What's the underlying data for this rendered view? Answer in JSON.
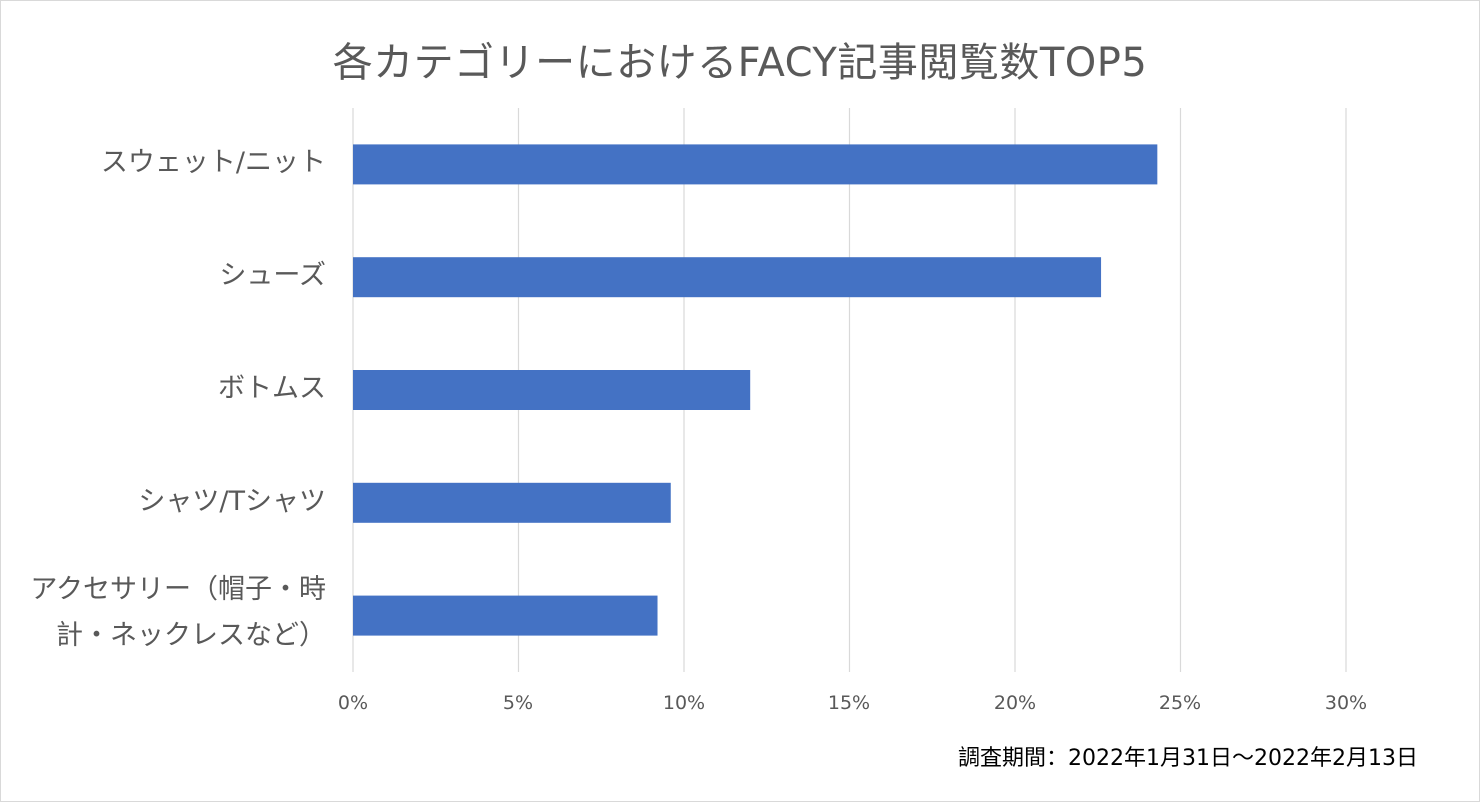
{
  "chart_data": {
    "type": "bar",
    "orientation": "horizontal",
    "title": "各カテゴリーにおけるFACY記事閲覧数TOP5",
    "categories": [
      "スウェット/ニット",
      "シューズ",
      "ボトムス",
      "シャツ/Tシャツ",
      "アクセサリー（帽子・時計・ネックレスなど）"
    ],
    "values": [
      24.3,
      22.6,
      12.0,
      9.6,
      9.2
    ],
    "value_unit": "%",
    "xlim": [
      0,
      30
    ],
    "x_ticks": [
      "0%",
      "5%",
      "10%",
      "15%",
      "20%",
      "25%",
      "30%"
    ],
    "x_tick_values": [
      0,
      5,
      10,
      15,
      20,
      25,
      30
    ],
    "grid": true,
    "bar_color": "#4472c4",
    "grid_color": "#d9d9d9"
  },
  "footnote": "調査期間：2022年1月31日～2022年2月13日"
}
